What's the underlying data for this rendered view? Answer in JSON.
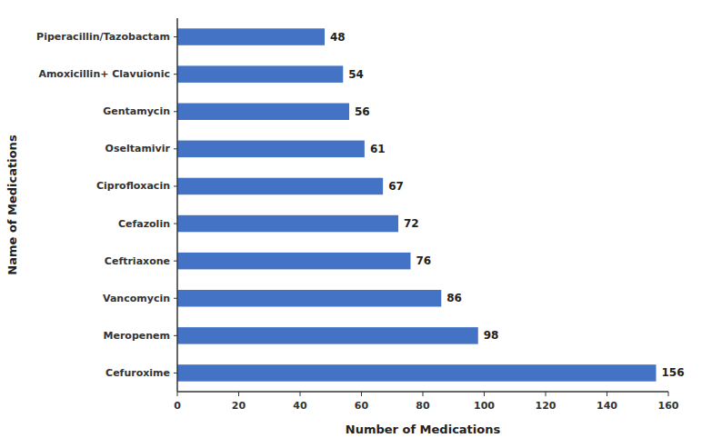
{
  "chart_data": {
    "type": "bar",
    "orientation": "horizontal",
    "categories": [
      "Cefuroxime",
      "Meropenem",
      "Vancomycin",
      "Ceftriaxone",
      "Cefazolin",
      "Ciprofloxacin",
      "Oseltamivir",
      "Gentamycin",
      "Amoxicillin+ Clavuionic",
      "Piperacillin/Tazobactam"
    ],
    "values": [
      156,
      98,
      86,
      76,
      72,
      67,
      61,
      56,
      54,
      48
    ],
    "color": "#4472C4",
    "xlabel": "Number of Medications",
    "ylabel": "Name of Medications",
    "xlim": [
      0,
      160
    ],
    "xticks": [
      0,
      20,
      40,
      60,
      80,
      100,
      120,
      140,
      160
    ],
    "data_labels": true,
    "grid": false
  }
}
